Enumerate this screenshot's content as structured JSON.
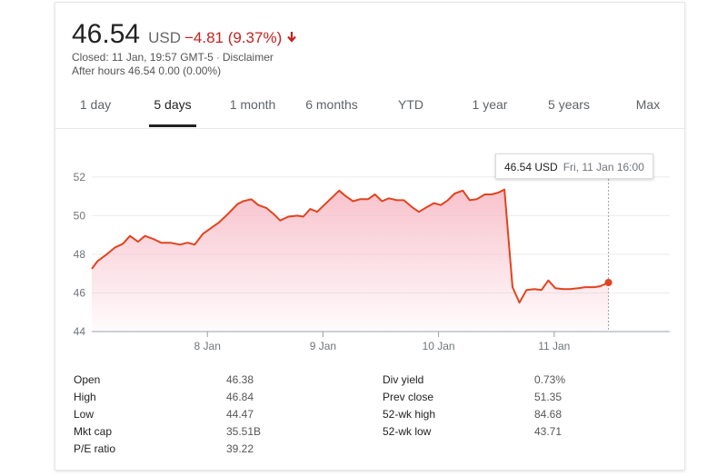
{
  "quote": {
    "price": "46.54",
    "currency": "USD",
    "change": "−4.81 (9.37%)",
    "closed_text": "Closed: 11 Jan, 19:57 GMT-5",
    "disclaimer": "Disclaimer",
    "after_hours": "After hours 46.54 0.00 (0.00%)",
    "down_color": "#c5221f"
  },
  "tabs": [
    "1 day",
    "5 days",
    "1 month",
    "6 months",
    "YTD",
    "1 year",
    "5 years",
    "Max"
  ],
  "active_tab": "5 days",
  "tooltip": {
    "price": "46.54 USD",
    "date": "Fri, 11 Jan 16:00"
  },
  "chart_data": {
    "type": "area",
    "title": "",
    "xlabel": "",
    "ylabel": "",
    "ylim": [
      44,
      53.5
    ],
    "yticks": [
      44,
      46,
      48,
      50,
      52
    ],
    "xticks": [
      {
        "label": "8 Jan",
        "x": 1
      },
      {
        "label": "9 Jan",
        "x": 2
      },
      {
        "label": "10 Jan",
        "x": 3
      },
      {
        "label": "11 Jan",
        "x": 4
      }
    ],
    "xlim": [
      0,
      5
    ],
    "grid": true,
    "line_color": "#e2431e",
    "fill_color": "#f7b8c4",
    "series": [
      {
        "values": [
          [
            0.0,
            47.25
          ],
          [
            0.05,
            47.65
          ],
          [
            0.13,
            48.0
          ],
          [
            0.2,
            48.35
          ],
          [
            0.27,
            48.55
          ],
          [
            0.33,
            48.95
          ],
          [
            0.4,
            48.65
          ],
          [
            0.46,
            48.95
          ],
          [
            0.53,
            48.8
          ],
          [
            0.6,
            48.6
          ],
          [
            0.68,
            48.6
          ],
          [
            0.76,
            48.5
          ],
          [
            0.83,
            48.6
          ],
          [
            0.89,
            48.5
          ],
          [
            0.96,
            49.05
          ],
          [
            1.03,
            49.35
          ],
          [
            1.1,
            49.65
          ],
          [
            1.18,
            50.1
          ],
          [
            1.26,
            50.6
          ],
          [
            1.31,
            50.75
          ],
          [
            1.38,
            50.85
          ],
          [
            1.44,
            50.55
          ],
          [
            1.51,
            50.4
          ],
          [
            1.58,
            50.05
          ],
          [
            1.63,
            49.75
          ],
          [
            1.7,
            49.95
          ],
          [
            1.78,
            50.0
          ],
          [
            1.83,
            49.95
          ],
          [
            1.89,
            50.35
          ],
          [
            1.95,
            50.2
          ],
          [
            2.01,
            50.55
          ],
          [
            2.08,
            50.95
          ],
          [
            2.14,
            51.3
          ],
          [
            2.2,
            51.0
          ],
          [
            2.26,
            50.75
          ],
          [
            2.32,
            50.85
          ],
          [
            2.39,
            50.85
          ],
          [
            2.45,
            51.1
          ],
          [
            2.51,
            50.75
          ],
          [
            2.57,
            50.9
          ],
          [
            2.64,
            50.8
          ],
          [
            2.7,
            50.8
          ],
          [
            2.77,
            50.45
          ],
          [
            2.83,
            50.2
          ],
          [
            2.9,
            50.45
          ],
          [
            2.96,
            50.65
          ],
          [
            3.02,
            50.55
          ],
          [
            3.08,
            50.8
          ],
          [
            3.14,
            51.15
          ],
          [
            3.21,
            51.3
          ],
          [
            3.27,
            50.8
          ],
          [
            3.33,
            50.85
          ],
          [
            3.4,
            51.1
          ],
          [
            3.46,
            51.1
          ],
          [
            3.52,
            51.2
          ],
          [
            3.57,
            51.35
          ],
          [
            3.64,
            46.3
          ],
          [
            3.7,
            45.5
          ],
          [
            3.76,
            46.15
          ],
          [
            3.83,
            46.2
          ],
          [
            3.89,
            46.15
          ],
          [
            3.95,
            46.65
          ],
          [
            4.01,
            46.25
          ],
          [
            4.08,
            46.2
          ],
          [
            4.14,
            46.2
          ],
          [
            4.21,
            46.25
          ],
          [
            4.27,
            46.3
          ],
          [
            4.35,
            46.3
          ],
          [
            4.4,
            46.35
          ],
          [
            4.47,
            46.54
          ]
        ]
      }
    ]
  },
  "stats": [
    {
      "label": "Open",
      "value": "46.38"
    },
    {
      "label": "High",
      "value": "46.84"
    },
    {
      "label": "Low",
      "value": "44.47"
    },
    {
      "label": "Mkt cap",
      "value": "35.51B"
    },
    {
      "label": "P/E ratio",
      "value": "39.22"
    },
    {
      "label": "Div yield",
      "value": "0.73%"
    },
    {
      "label": "Prev close",
      "value": "51.35"
    },
    {
      "label": "52-wk high",
      "value": "84.68"
    },
    {
      "label": "52-wk low",
      "value": "43.71"
    }
  ]
}
